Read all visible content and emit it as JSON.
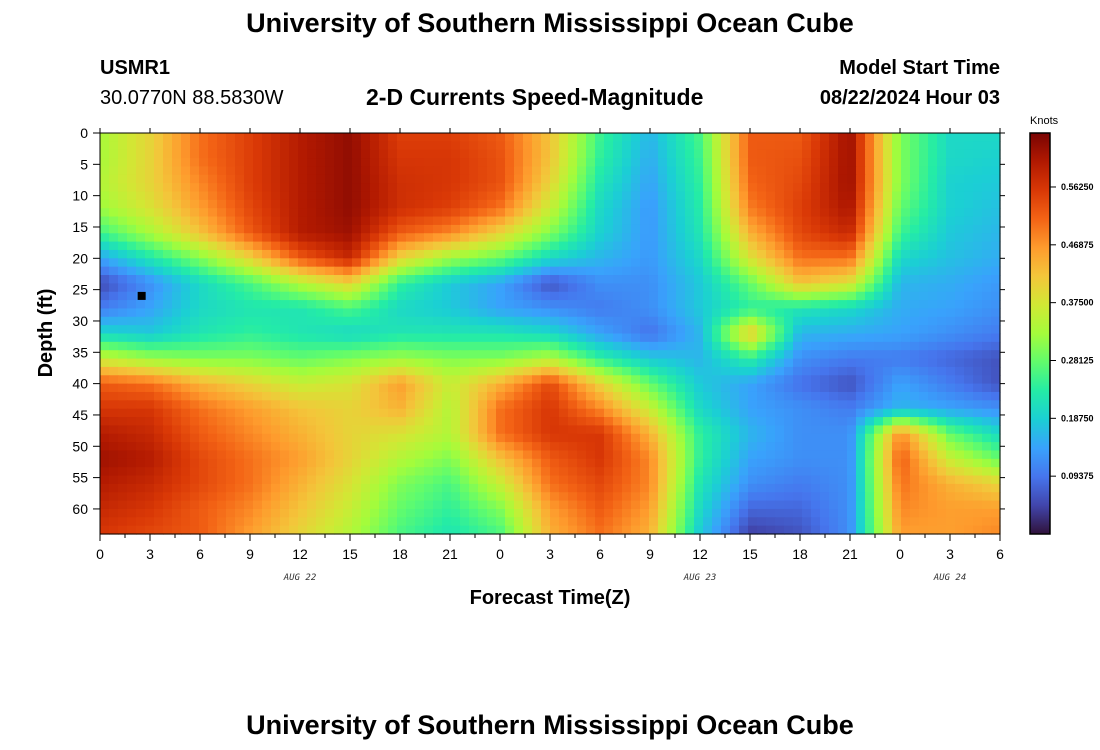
{
  "header": {
    "title": "University of Southern Mississippi Ocean Cube",
    "station": "USMR1",
    "coords": "30.0770N  88.5830W",
    "subtitle": "2-D Currents Speed-Magnitude",
    "model_start_label": "Model Start Time",
    "model_start_value": "08/22/2024 Hour 03",
    "footer_title": "University of Southern Mississippi Ocean Cube"
  },
  "chart_data": {
    "type": "heatmap",
    "xlabel": "Forecast Time(Z)",
    "ylabel": "Depth (ft)",
    "x_tick_labels": [
      "0",
      "3",
      "6",
      "9",
      "12",
      "15",
      "18",
      "21",
      "0",
      "3",
      "6",
      "9",
      "12",
      "15",
      "18",
      "21",
      "0",
      "3",
      "6"
    ],
    "x_hours": [
      0,
      3,
      6,
      9,
      12,
      15,
      18,
      21,
      24,
      27,
      30,
      33,
      36,
      39,
      42,
      45,
      48,
      51,
      54
    ],
    "date_labels": [
      {
        "text": "AUG 22",
        "hour": 12
      },
      {
        "text": "AUG 23",
        "hour": 36
      },
      {
        "text": "AUG 24",
        "hour": 51
      }
    ],
    "xlim": [
      0,
      54
    ],
    "y_tick_labels": [
      "0",
      "5",
      "10",
      "15",
      "20",
      "25",
      "30",
      "35",
      "40",
      "45",
      "50",
      "55",
      "60"
    ],
    "y_ticks": [
      0,
      5,
      10,
      15,
      20,
      25,
      30,
      35,
      40,
      45,
      50,
      55,
      60
    ],
    "ylim": [
      0,
      64
    ],
    "y_inverted": true,
    "colorbar": {
      "unit": "Knots",
      "min": 0.0,
      "max": 0.65,
      "tick_labels": [
        "0.56250",
        "0.46875",
        "0.37500",
        "0.28125",
        "0.18750",
        "0.09375"
      ],
      "tick_values": [
        0.5625,
        0.46875,
        0.375,
        0.28125,
        0.1875,
        0.09375
      ],
      "colormap": [
        "#30123b",
        "#4145ab",
        "#4675ed",
        "#39a2fc",
        "#1bcfd4",
        "#24eca6",
        "#61fc6c",
        "#a4fc3b",
        "#d1e834",
        "#f3c63a",
        "#fe9b2d",
        "#f36315",
        "#d93806",
        "#b11901",
        "#7a0403"
      ]
    },
    "marker": {
      "hour": 2.5,
      "depth": 26
    },
    "depths": [
      0,
      4,
      8,
      12,
      16,
      20,
      24,
      28,
      32,
      36,
      40,
      44,
      48,
      52,
      56,
      60,
      64
    ],
    "hours": [
      0,
      3,
      6,
      9,
      12,
      15,
      18,
      21,
      24,
      27,
      30,
      33,
      36,
      39,
      42,
      45,
      48,
      51,
      54
    ],
    "values": [
      [
        0.33,
        0.4,
        0.5,
        0.55,
        0.6,
        0.63,
        0.55,
        0.55,
        0.52,
        0.42,
        0.25,
        0.16,
        0.26,
        0.52,
        0.52,
        0.62,
        0.3,
        0.2,
        0.2
      ],
      [
        0.33,
        0.4,
        0.5,
        0.55,
        0.6,
        0.63,
        0.56,
        0.56,
        0.53,
        0.42,
        0.24,
        0.15,
        0.25,
        0.52,
        0.53,
        0.62,
        0.3,
        0.2,
        0.19
      ],
      [
        0.34,
        0.4,
        0.48,
        0.55,
        0.6,
        0.63,
        0.57,
        0.56,
        0.53,
        0.4,
        0.22,
        0.14,
        0.24,
        0.51,
        0.54,
        0.62,
        0.3,
        0.19,
        0.18
      ],
      [
        0.32,
        0.38,
        0.46,
        0.54,
        0.6,
        0.63,
        0.57,
        0.55,
        0.5,
        0.36,
        0.2,
        0.13,
        0.23,
        0.49,
        0.55,
        0.61,
        0.28,
        0.19,
        0.17
      ],
      [
        0.25,
        0.33,
        0.42,
        0.52,
        0.6,
        0.62,
        0.52,
        0.48,
        0.4,
        0.3,
        0.19,
        0.13,
        0.22,
        0.44,
        0.54,
        0.58,
        0.25,
        0.18,
        0.16
      ],
      [
        0.14,
        0.22,
        0.3,
        0.4,
        0.52,
        0.58,
        0.4,
        0.32,
        0.28,
        0.2,
        0.16,
        0.13,
        0.2,
        0.38,
        0.5,
        0.5,
        0.2,
        0.17,
        0.15
      ],
      [
        0.05,
        0.12,
        0.2,
        0.26,
        0.34,
        0.4,
        0.24,
        0.18,
        0.14,
        0.06,
        0.12,
        0.12,
        0.18,
        0.28,
        0.42,
        0.38,
        0.16,
        0.15,
        0.13
      ],
      [
        0.1,
        0.14,
        0.2,
        0.22,
        0.22,
        0.26,
        0.2,
        0.18,
        0.14,
        0.12,
        0.1,
        0.12,
        0.18,
        0.24,
        0.22,
        0.2,
        0.15,
        0.14,
        0.12
      ],
      [
        0.2,
        0.18,
        0.22,
        0.24,
        0.22,
        0.2,
        0.22,
        0.22,
        0.22,
        0.2,
        0.14,
        0.09,
        0.16,
        0.42,
        0.16,
        0.15,
        0.14,
        0.12,
        0.1
      ],
      [
        0.36,
        0.32,
        0.3,
        0.3,
        0.28,
        0.3,
        0.32,
        0.3,
        0.3,
        0.34,
        0.24,
        0.18,
        0.16,
        0.24,
        0.12,
        0.1,
        0.1,
        0.08,
        0.06
      ],
      [
        0.52,
        0.5,
        0.44,
        0.4,
        0.36,
        0.38,
        0.46,
        0.36,
        0.44,
        0.54,
        0.4,
        0.28,
        0.18,
        0.14,
        0.09,
        0.06,
        0.14,
        0.1,
        0.06
      ],
      [
        0.56,
        0.56,
        0.5,
        0.46,
        0.42,
        0.4,
        0.44,
        0.34,
        0.5,
        0.56,
        0.48,
        0.36,
        0.2,
        0.14,
        0.12,
        0.1,
        0.16,
        0.14,
        0.12
      ],
      [
        0.6,
        0.58,
        0.52,
        0.48,
        0.44,
        0.4,
        0.38,
        0.34,
        0.5,
        0.56,
        0.56,
        0.44,
        0.24,
        0.16,
        0.12,
        0.12,
        0.48,
        0.28,
        0.2
      ],
      [
        0.62,
        0.6,
        0.54,
        0.5,
        0.46,
        0.4,
        0.34,
        0.3,
        0.42,
        0.52,
        0.56,
        0.48,
        0.24,
        0.14,
        0.12,
        0.12,
        0.52,
        0.36,
        0.28
      ],
      [
        0.6,
        0.58,
        0.54,
        0.5,
        0.44,
        0.38,
        0.3,
        0.26,
        0.36,
        0.5,
        0.54,
        0.48,
        0.22,
        0.12,
        0.1,
        0.12,
        0.5,
        0.44,
        0.4
      ],
      [
        0.58,
        0.56,
        0.52,
        0.48,
        0.42,
        0.36,
        0.28,
        0.24,
        0.3,
        0.46,
        0.52,
        0.46,
        0.2,
        0.08,
        0.08,
        0.12,
        0.48,
        0.46,
        0.46
      ],
      [
        0.56,
        0.54,
        0.52,
        0.46,
        0.4,
        0.34,
        0.26,
        0.22,
        0.26,
        0.44,
        0.5,
        0.44,
        0.18,
        0.04,
        0.06,
        0.12,
        0.46,
        0.46,
        0.48
      ]
    ]
  }
}
